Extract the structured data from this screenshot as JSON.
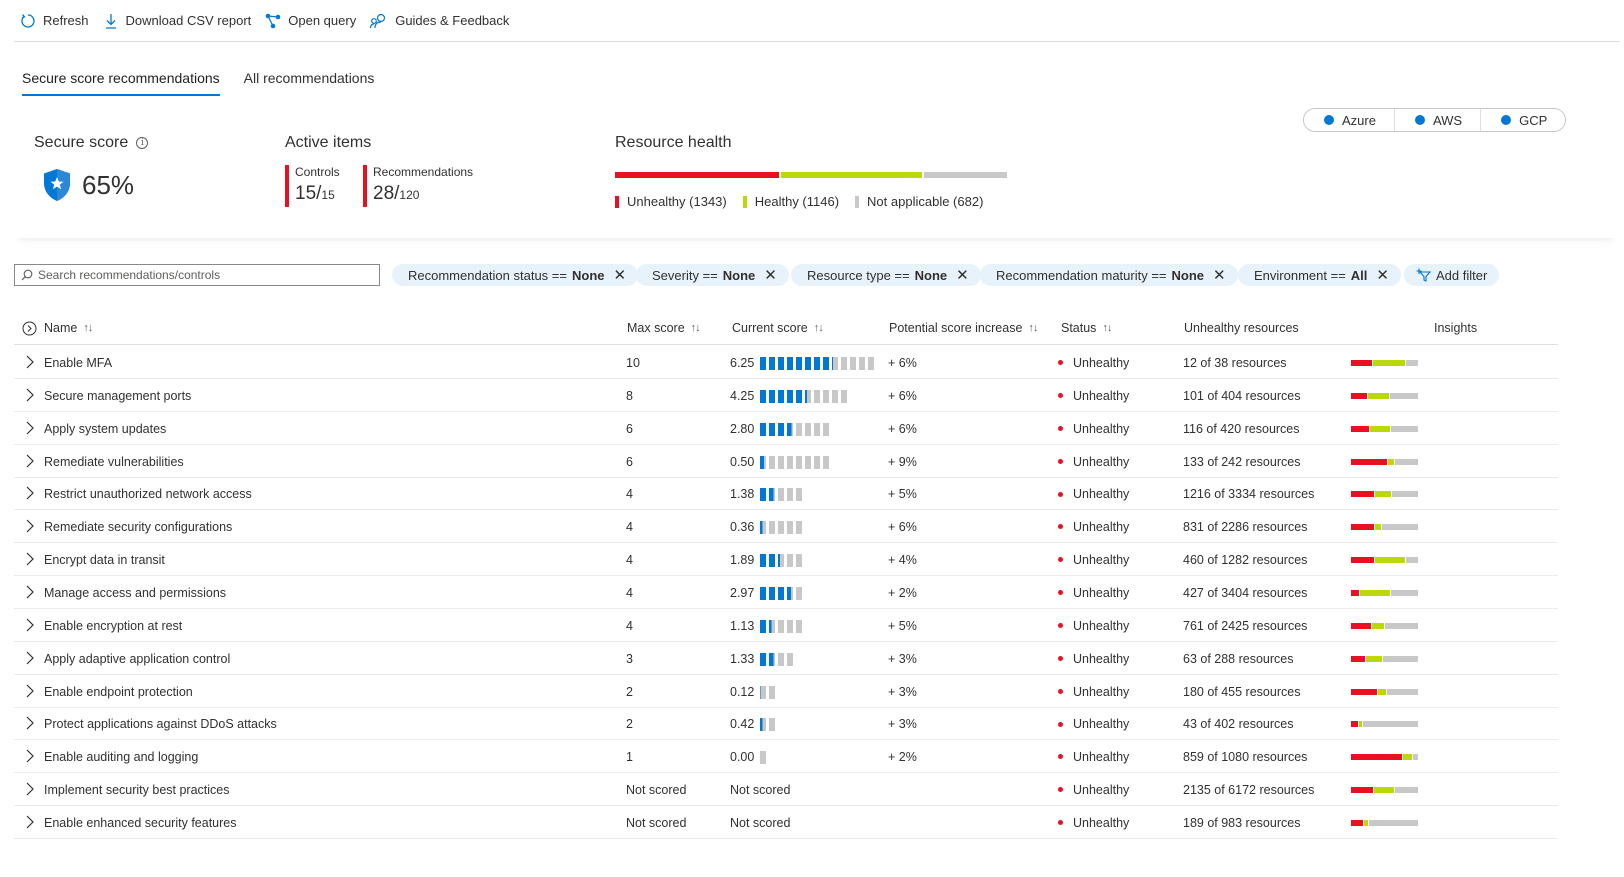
{
  "toolbar": {
    "refresh": "Refresh",
    "download": "Download CSV report",
    "open_query": "Open query",
    "guides": "Guides & Feedback"
  },
  "tabs": [
    "Secure score recommendations",
    "All recommendations"
  ],
  "secure_score": {
    "title": "Secure score",
    "value": "65%"
  },
  "active_items": {
    "title": "Active items",
    "controls_label": "Controls",
    "controls_value": "15/",
    "controls_total": "15",
    "recs_label": "Recommendations",
    "recs_value": "28/",
    "recs_total": "120"
  },
  "resource_health": {
    "title": "Resource health",
    "unhealthy": "Unhealthy (1343)",
    "healthy": "Healthy (1146)",
    "not_applicable": "Not applicable (682)",
    "unhealthy_count": 1343,
    "healthy_count": 1146,
    "na_count": 682
  },
  "environments": [
    "Azure",
    "AWS",
    "GCP"
  ],
  "search": {
    "placeholder": "Search recommendations/controls"
  },
  "filters": [
    {
      "label": "Recommendation status ==",
      "value": "None"
    },
    {
      "label": "Severity ==",
      "value": "None"
    },
    {
      "label": "Resource type ==",
      "value": "None"
    },
    {
      "label": "Recommendation maturity ==",
      "value": "None"
    },
    {
      "label": "Environment ==",
      "value": "All"
    }
  ],
  "add_filter": "Add filter",
  "columns": {
    "name": "Name",
    "max_score": "Max score",
    "current_score": "Current score",
    "potential": "Potential score increase",
    "status": "Status",
    "unhealthy": "Unhealthy resources",
    "insights": "Insights"
  },
  "colors": {
    "accent": "#0078d4",
    "unhealthy": "#e81123",
    "healthy": "#bad80a",
    "na": "#c8c8c8"
  },
  "rows": [
    {
      "name": "Enable MFA",
      "max": "10",
      "current": "6.25",
      "potential": "+ 6%",
      "status": "Unhealthy",
      "resources": "12 of 38 resources",
      "score_fraction": 0.625,
      "health": [
        0.32,
        0.5,
        0.18
      ]
    },
    {
      "name": "Secure management ports",
      "max": "8",
      "current": "4.25",
      "potential": "+ 6%",
      "status": "Unhealthy",
      "resources": "101 of 404 resources",
      "score_fraction": 0.53,
      "health": [
        0.25,
        0.32,
        0.43
      ]
    },
    {
      "name": "Apply system updates",
      "max": "6",
      "current": "2.80",
      "potential": "+ 6%",
      "status": "Unhealthy",
      "resources": "116 of 420 resources",
      "score_fraction": 0.47,
      "health": [
        0.28,
        0.3,
        0.42
      ]
    },
    {
      "name": "Remediate vulnerabilities",
      "max": "6",
      "current": "0.50",
      "potential": "+ 9%",
      "status": "Unhealthy",
      "resources": "133 of 242 resources",
      "score_fraction": 0.08,
      "health": [
        0.55,
        0.1,
        0.35
      ]
    },
    {
      "name": "Restrict unauthorized network access",
      "max": "4",
      "current": "1.38",
      "potential": "+ 5%",
      "status": "Unhealthy",
      "resources": "1216 of 3334 resources",
      "score_fraction": 0.35,
      "health": [
        0.36,
        0.24,
        0.4
      ]
    },
    {
      "name": "Remediate security configurations",
      "max": "4",
      "current": "0.36",
      "potential": "+ 6%",
      "status": "Unhealthy",
      "resources": "831 of 2286 resources",
      "score_fraction": 0.09,
      "health": [
        0.36,
        0.08,
        0.56
      ]
    },
    {
      "name": "Encrypt data in transit",
      "max": "4",
      "current": "1.89",
      "potential": "+ 4%",
      "status": "Unhealthy",
      "resources": "460 of 1282 resources",
      "score_fraction": 0.47,
      "health": [
        0.36,
        0.46,
        0.18
      ]
    },
    {
      "name": "Manage access and permissions",
      "max": "4",
      "current": "2.97",
      "potential": "+ 2%",
      "status": "Unhealthy",
      "resources": "427 of 3404 resources",
      "score_fraction": 0.74,
      "health": [
        0.13,
        0.46,
        0.41
      ]
    },
    {
      "name": "Enable encryption at rest",
      "max": "4",
      "current": "1.13",
      "potential": "+ 5%",
      "status": "Unhealthy",
      "resources": "761 of 2425 resources",
      "score_fraction": 0.28,
      "health": [
        0.31,
        0.18,
        0.51
      ]
    },
    {
      "name": "Apply adaptive application control",
      "max": "3",
      "current": "1.33",
      "potential": "+ 3%",
      "status": "Unhealthy",
      "resources": "63 of 288 resources",
      "score_fraction": 0.44,
      "health": [
        0.22,
        0.24,
        0.54
      ]
    },
    {
      "name": "Enable endpoint protection",
      "max": "2",
      "current": "0.12",
      "potential": "+ 3%",
      "status": "Unhealthy",
      "resources": "180 of 455 resources",
      "score_fraction": 0.06,
      "health": [
        0.4,
        0.12,
        0.48
      ]
    },
    {
      "name": "Protect applications against DDoS attacks",
      "max": "2",
      "current": "0.42",
      "potential": "+ 3%",
      "status": "Unhealthy",
      "resources": "43 of 402 resources",
      "score_fraction": 0.21,
      "health": [
        0.1,
        0.05,
        0.85
      ]
    },
    {
      "name": "Enable auditing and logging",
      "max": "1",
      "current": "0.00",
      "potential": "+ 2%",
      "status": "Unhealthy",
      "resources": "859 of 1080 resources",
      "score_fraction": 0.0,
      "health": [
        0.79,
        0.13,
        0.08
      ]
    },
    {
      "name": "Implement security best practices",
      "max": "Not scored",
      "current": "Not scored",
      "potential": "",
      "status": "Unhealthy",
      "resources": "2135 of 6172 resources",
      "score_fraction": null,
      "health": [
        0.34,
        0.3,
        0.36
      ]
    },
    {
      "name": "Enable enhanced security features",
      "max": "Not scored",
      "current": "Not scored",
      "potential": "",
      "status": "Unhealthy",
      "resources": "189 of 983 resources",
      "score_fraction": null,
      "health": [
        0.19,
        0.05,
        0.76
      ]
    }
  ]
}
